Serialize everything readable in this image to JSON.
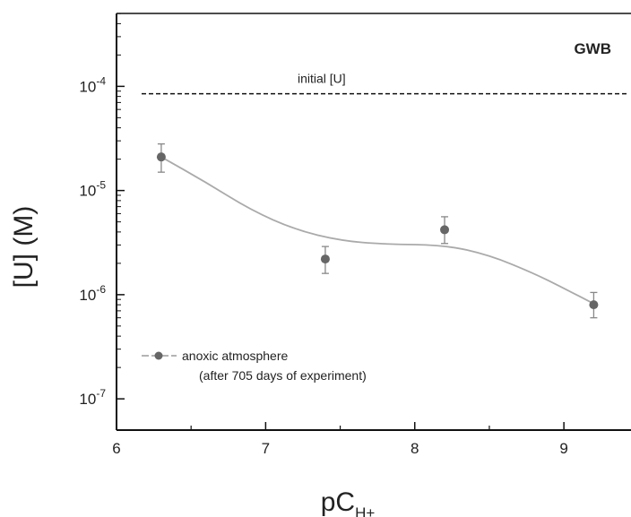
{
  "chart_data": {
    "type": "scatter",
    "panel_label": "GWB",
    "xlabel": "pC",
    "xlabel_sub": "H+",
    "ylabel": "[U] (M)",
    "xlim": [
      6,
      9.45
    ],
    "ylim": [
      1e-07,
      0.0005
    ],
    "yscale": "log",
    "x_ticks": [
      6,
      7,
      8,
      9
    ],
    "y_ticks": [
      {
        "value": 0.0001,
        "base": "10",
        "exp": "-4"
      },
      {
        "value": 1e-05,
        "base": "10",
        "exp": "-5"
      },
      {
        "value": 1e-06,
        "base": "10",
        "exp": "-6"
      },
      {
        "value": 1e-07,
        "base": "10",
        "exp": "-7"
      }
    ],
    "reference_line": {
      "label": "initial [U]",
      "value": 8.5e-05
    },
    "series": [
      {
        "name": "anoxic atmosphere",
        "name_line2": "(after 705 days of experiment)",
        "points": [
          {
            "x": 6.3,
            "y": 2.1e-05,
            "err_low": 1.5e-05,
            "err_high": 2.8e-05
          },
          {
            "x": 7.4,
            "y": 2.2e-06,
            "err_low": 1.6e-06,
            "err_high": 2.9e-06
          },
          {
            "x": 8.2,
            "y": 4.2e-06,
            "err_low": 3.1e-06,
            "err_high": 5.6e-06
          },
          {
            "x": 9.2,
            "y": 8e-07,
            "err_low": 6e-07,
            "err_high": 1.05e-06
          }
        ],
        "fit_curve": [
          [
            6.3,
            2.1e-05
          ],
          [
            6.6,
            1.2e-05
          ],
          [
            6.9,
            6.5e-06
          ],
          [
            7.2,
            4.2e-06
          ],
          [
            7.5,
            3.3e-06
          ],
          [
            7.8,
            3.05e-06
          ],
          [
            8.2,
            3e-06
          ],
          [
            8.5,
            2.4e-06
          ],
          [
            8.8,
            1.6e-06
          ],
          [
            9.0,
            1.15e-06
          ],
          [
            9.2,
            8.2e-07
          ]
        ]
      }
    ],
    "legend": "inside-lower-left",
    "grid": false,
    "colors": {
      "points": "#666666",
      "curve": "#aaaaaa",
      "axis": "#111111",
      "reference": "#111111"
    }
  }
}
